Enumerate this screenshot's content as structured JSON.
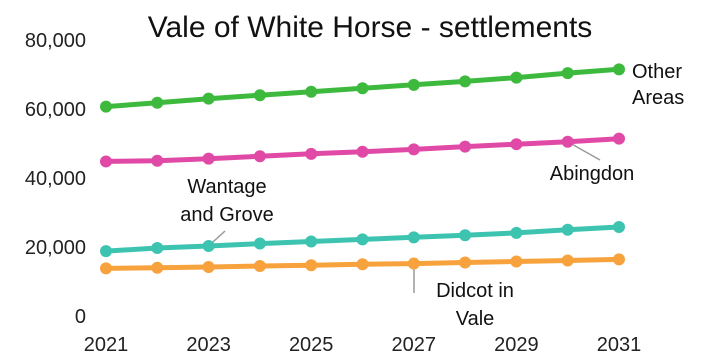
{
  "chart_data": {
    "type": "line",
    "title": "Vale of White Horse - settlements",
    "xlabel": "",
    "ylabel": "",
    "x": [
      2021,
      2022,
      2023,
      2024,
      2025,
      2026,
      2027,
      2028,
      2029,
      2030,
      2031
    ],
    "x_tick_labels": [
      "2021",
      "2023",
      "2025",
      "2027",
      "2029",
      "2031"
    ],
    "y_tick_labels": [
      "0",
      "20,000",
      "40,000",
      "60,000",
      "80,000"
    ],
    "ylim": [
      0,
      80000
    ],
    "grid": false,
    "legend": "none",
    "series": [
      {
        "name": "Other Areas",
        "color": "#3dba3d",
        "values": [
          60700,
          61800,
          63000,
          64000,
          65000,
          66000,
          67000,
          68000,
          69100,
          70400,
          71500
        ]
      },
      {
        "name": "Abingdon",
        "color": "#e04aa6",
        "values": [
          44800,
          45000,
          45600,
          46300,
          47000,
          47600,
          48300,
          49100,
          49800,
          50500,
          51400
        ]
      },
      {
        "name": "Wantage and Grove",
        "color": "#3dc4b0",
        "values": [
          18800,
          19700,
          20300,
          21000,
          21600,
          22200,
          22800,
          23400,
          24100,
          25000,
          25800
        ]
      },
      {
        "name": "Didcot in Vale",
        "color": "#f7a23c",
        "values": [
          13800,
          14000,
          14200,
          14500,
          14700,
          15000,
          15200,
          15500,
          15800,
          16100,
          16400
        ]
      }
    ],
    "annotations": [
      {
        "series": "Other Areas",
        "lines": [
          "Other",
          "Areas"
        ]
      },
      {
        "series": "Abingdon",
        "lines": [
          "Abingdon"
        ]
      },
      {
        "series": "Wantage and Grove",
        "lines": [
          "Wantage",
          "and Grove"
        ]
      },
      {
        "series": "Didcot in Vale",
        "lines": [
          "Didcot in",
          "Vale"
        ]
      }
    ]
  }
}
